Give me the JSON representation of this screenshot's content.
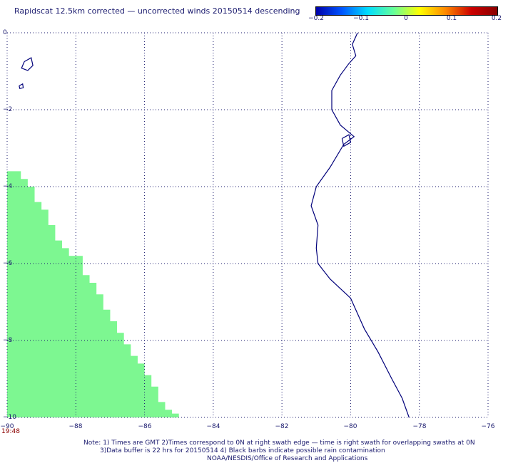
{
  "title": "Rapidscat 12.5km corrected — uncorrected winds 20150514 descending",
  "colorbar": {
    "ticks": [
      "−0.2",
      "−0.1",
      "0",
      "0.1",
      "0.2"
    ],
    "colors": [
      "#0000aa",
      "#0055ff",
      "#00ddff",
      "#66ff99",
      "#ffff00",
      "#ff8800",
      "#cc0000",
      "#880000"
    ]
  },
  "axes": {
    "lat_labels": [
      "0",
      "−2",
      "−4",
      "−6",
      "−8",
      "−10"
    ],
    "lon_labels": [
      "−90",
      "−88",
      "−86",
      "−84",
      "−82",
      "−80",
      "−78",
      "−76"
    ],
    "lat_range": [
      -10,
      0
    ],
    "lon_range": [
      -90,
      -76
    ],
    "grid": true
  },
  "time_label": "19:48",
  "swath": {
    "color": "#7df791",
    "edge": [
      [
        -90,
        -3.6
      ],
      [
        -89.6,
        -3.6
      ],
      [
        -89.6,
        -3.8
      ],
      [
        -89.4,
        -3.8
      ],
      [
        -89.4,
        -4.0
      ],
      [
        -89.2,
        -4.0
      ],
      [
        -89.2,
        -4.4
      ],
      [
        -89.0,
        -4.4
      ],
      [
        -89.0,
        -4.6
      ],
      [
        -88.8,
        -4.6
      ],
      [
        -88.8,
        -5.0
      ],
      [
        -88.6,
        -5.0
      ],
      [
        -88.6,
        -5.4
      ],
      [
        -88.4,
        -5.4
      ],
      [
        -88.4,
        -5.6
      ],
      [
        -88.2,
        -5.6
      ],
      [
        -88.2,
        -5.8
      ],
      [
        -87.8,
        -5.8
      ],
      [
        -87.8,
        -6.3
      ],
      [
        -87.6,
        -6.3
      ],
      [
        -87.6,
        -6.5
      ],
      [
        -87.4,
        -6.5
      ],
      [
        -87.4,
        -6.8
      ],
      [
        -87.2,
        -6.8
      ],
      [
        -87.2,
        -7.2
      ],
      [
        -87.0,
        -7.2
      ],
      [
        -87.0,
        -7.5
      ],
      [
        -86.8,
        -7.5
      ],
      [
        -86.8,
        -7.8
      ],
      [
        -86.6,
        -7.8
      ],
      [
        -86.6,
        -8.1
      ],
      [
        -86.4,
        -8.1
      ],
      [
        -86.4,
        -8.4
      ],
      [
        -86.2,
        -8.4
      ],
      [
        -86.2,
        -8.6
      ],
      [
        -86.0,
        -8.6
      ],
      [
        -86.0,
        -8.9
      ],
      [
        -85.8,
        -8.9
      ],
      [
        -85.8,
        -9.2
      ],
      [
        -85.6,
        -9.2
      ],
      [
        -85.6,
        -9.6
      ],
      [
        -85.4,
        -9.6
      ],
      [
        -85.4,
        -9.8
      ],
      [
        -85.2,
        -9.8
      ],
      [
        -85.2,
        -9.9
      ],
      [
        -85.0,
        -9.9
      ],
      [
        -85.0,
        -10.0
      ]
    ]
  },
  "coastline": {
    "color": "#00007a",
    "mainland": [
      [
        -79.8,
        0.0
      ],
      [
        -79.95,
        -0.3
      ],
      [
        -79.85,
        -0.6
      ],
      [
        -80.05,
        -0.8
      ],
      [
        -80.3,
        -1.1
      ],
      [
        -80.55,
        -1.5
      ],
      [
        -80.55,
        -2.0
      ],
      [
        -80.3,
        -2.4
      ],
      [
        -79.9,
        -2.7
      ],
      [
        -80.2,
        -2.9
      ],
      [
        -80.6,
        -3.5
      ],
      [
        -81.0,
        -4.0
      ],
      [
        -81.15,
        -4.5
      ],
      [
        -80.95,
        -5.0
      ],
      [
        -81.0,
        -5.6
      ],
      [
        -80.95,
        -6.0
      ],
      [
        -80.6,
        -6.4
      ],
      [
        -80.0,
        -6.9
      ],
      [
        -79.6,
        -7.7
      ],
      [
        -79.2,
        -8.3
      ],
      [
        -78.8,
        -9.0
      ],
      [
        -78.5,
        -9.5
      ],
      [
        -78.3,
        -10.0
      ]
    ],
    "islands": [
      [
        [
          -89.5,
          -0.75
        ],
        [
          -89.3,
          -0.65
        ],
        [
          -89.25,
          -0.85
        ],
        [
          -89.4,
          -0.98
        ],
        [
          -89.58,
          -0.92
        ],
        [
          -89.5,
          -0.75
        ]
      ],
      [
        [
          -89.65,
          -1.38
        ],
        [
          -89.55,
          -1.33
        ],
        [
          -89.53,
          -1.43
        ],
        [
          -89.63,
          -1.45
        ],
        [
          -89.65,
          -1.38
        ]
      ],
      [
        [
          -80.25,
          -2.75
        ],
        [
          -80.05,
          -2.65
        ],
        [
          -80.0,
          -2.85
        ],
        [
          -80.2,
          -2.95
        ],
        [
          -80.25,
          -2.75
        ]
      ]
    ]
  },
  "notes": [
    "Note: 1) Times are GMT 2)Times correspond to 0N at right swath edge — time is right swath for overlapping swaths at 0N",
    "3)Data buffer is 22 hrs for 20150514 4) Black barbs indicate possible rain contamination",
    "NOAA/NESDIS/Office of Research and Applications"
  ]
}
